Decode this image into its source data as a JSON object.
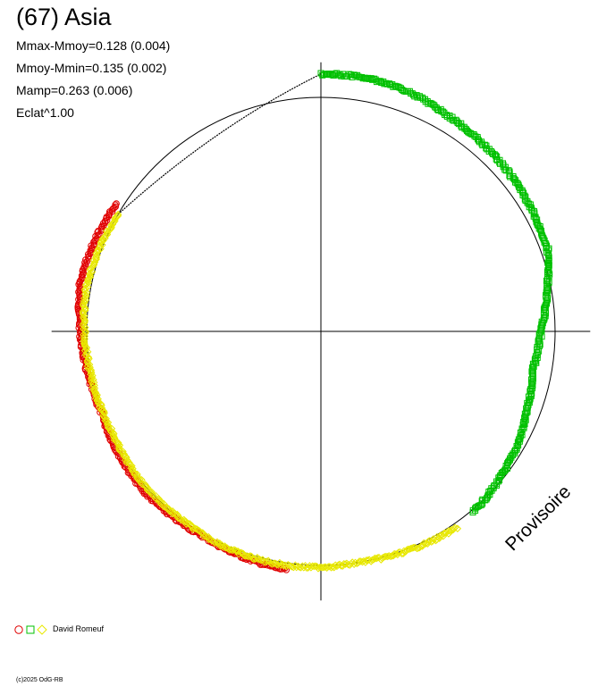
{
  "chart_data": {
    "type": "scatter",
    "title": "(67) Asia",
    "stats": [
      "Mmax-Mmoy=0.128 (0.004)",
      "Mmoy-Mmin=0.135 (0.002)",
      "Mamp=0.263 (0.006)",
      "Eclat^1.00"
    ],
    "reference_circle_radius": 1.0,
    "axes": {
      "xlim": [
        -1.15,
        1.15
      ],
      "ylim": [
        -1.15,
        1.15
      ],
      "crosshair": true
    },
    "series": [
      {
        "marker": "circle",
        "color": "#e00000",
        "points": [
          {
            "angle": 148,
            "r": 1.03
          },
          {
            "angle": 158,
            "r": 1.04
          },
          {
            "angle": 168,
            "r": 1.05
          },
          {
            "angle": 178,
            "r": 1.03
          },
          {
            "angle": 200,
            "r": 1.0
          },
          {
            "angle": 222,
            "r": 1.02
          },
          {
            "angle": 240,
            "r": 1.01
          },
          {
            "angle": 262,
            "r": 1.03
          }
        ]
      },
      {
        "marker": "square",
        "color": "#00c000",
        "points": [
          {
            "angle": 90,
            "r": 1.1
          },
          {
            "angle": 80,
            "r": 1.1
          },
          {
            "angle": 70,
            "r": 1.09
          },
          {
            "angle": 60,
            "r": 1.07
          },
          {
            "angle": 50,
            "r": 1.06
          },
          {
            "angle": 40,
            "r": 1.05
          },
          {
            "angle": 30,
            "r": 1.04
          },
          {
            "angle": 20,
            "r": 1.03
          },
          {
            "angle": 10,
            "r": 0.98
          },
          {
            "angle": 0,
            "r": 0.94
          },
          {
            "angle": -10,
            "r": 0.92
          },
          {
            "angle": -20,
            "r": 0.94
          },
          {
            "angle": -30,
            "r": 0.97
          },
          {
            "angle": -40,
            "r": 0.99
          },
          {
            "angle": -50,
            "r": 1.01
          }
        ]
      },
      {
        "marker": "diamond",
        "color": "#e8e800",
        "points": [
          {
            "angle": 150,
            "r": 1.0
          },
          {
            "angle": 160,
            "r": 1.01
          },
          {
            "angle": 170,
            "r": 1.02
          },
          {
            "angle": 180,
            "r": 1.01
          },
          {
            "angle": 190,
            "r": 1.0
          },
          {
            "angle": 205,
            "r": 0.99
          },
          {
            "angle": 220,
            "r": 1.0
          },
          {
            "angle": 235,
            "r": 1.0
          },
          {
            "angle": 250,
            "r": 1.01
          },
          {
            "angle": 265,
            "r": 1.01
          },
          {
            "angle": 280,
            "r": 1.0
          },
          {
            "angle": 295,
            "r": 1.01
          },
          {
            "angle": 305,
            "r": 1.02
          }
        ]
      }
    ],
    "connector": {
      "from_angle": 150,
      "to_angle": 90,
      "color": "#000000"
    }
  },
  "stamp": "Provisoire",
  "legend": {
    "author": "David Romeuf",
    "symbols": [
      {
        "shape": "circle",
        "color": "#e00000"
      },
      {
        "shape": "square",
        "color": "#00c000"
      },
      {
        "shape": "diamond",
        "color": "#e8e800"
      }
    ]
  },
  "copyright": "(c)2025 OdG-RB"
}
